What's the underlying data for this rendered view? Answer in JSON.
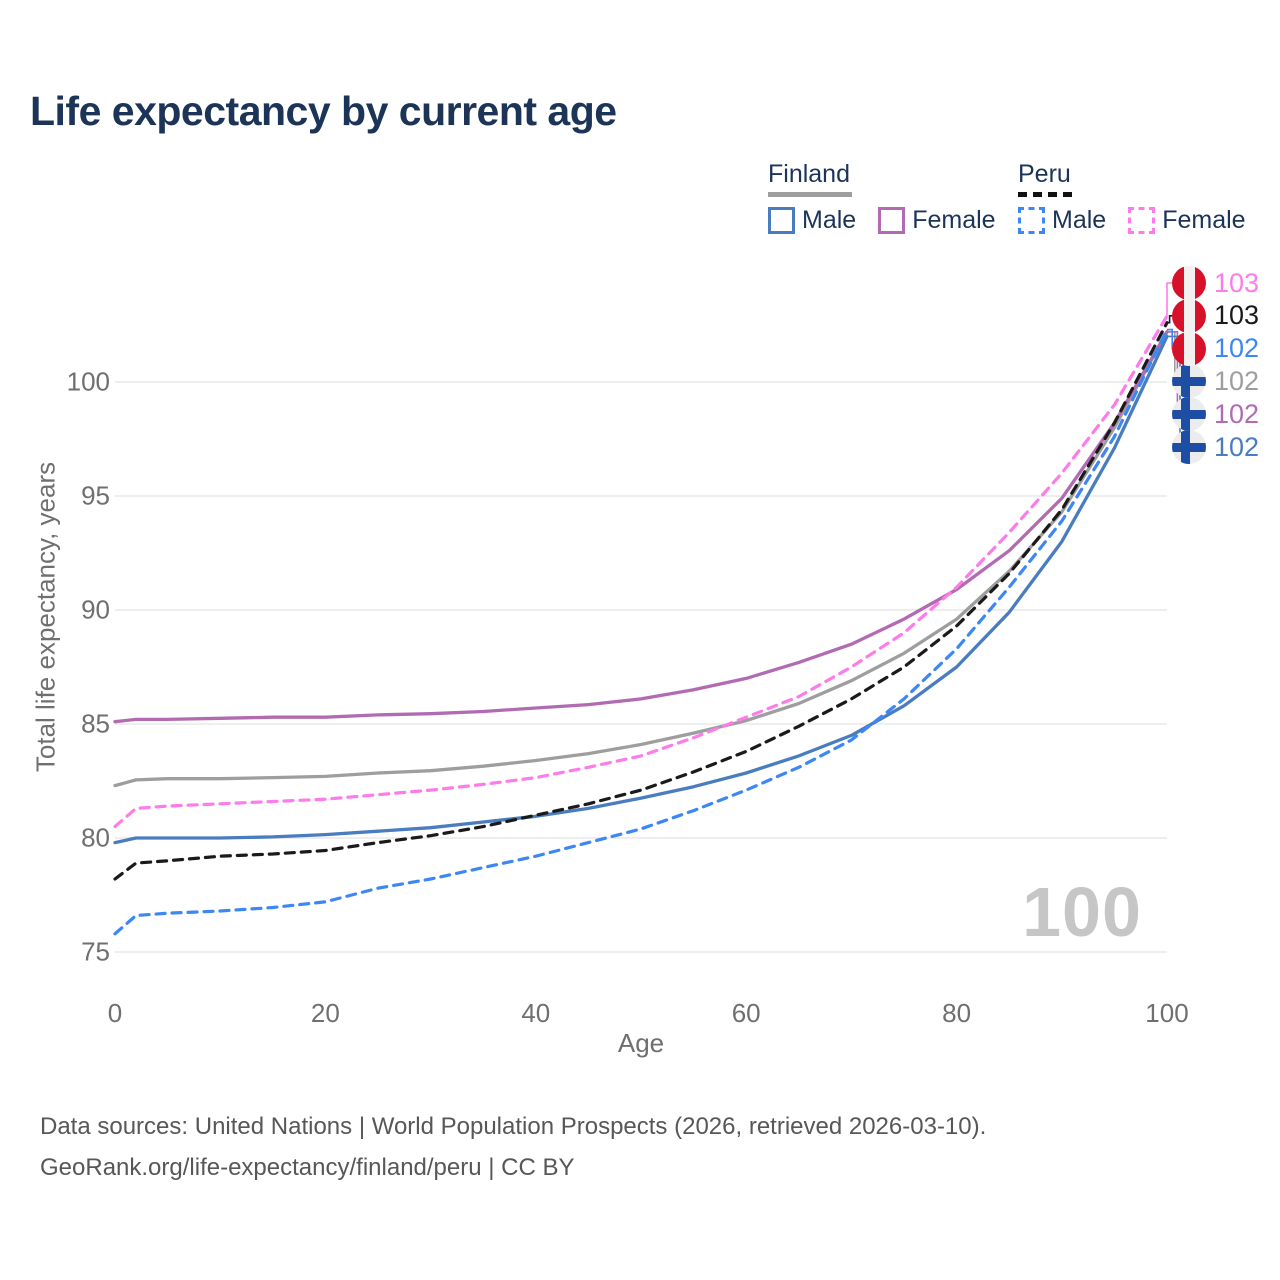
{
  "title": "Life expectancy by current age",
  "legend": {
    "groups": [
      {
        "label": "Finland",
        "line_style": "solid",
        "items": [
          {
            "label": "Male",
            "color": "#4a7cc0"
          },
          {
            "label": "Female",
            "color": "#b26bb2"
          }
        ]
      },
      {
        "label": "Peru",
        "line_style": "dashed",
        "items": [
          {
            "label": "Male",
            "color": "#3d87f5"
          },
          {
            "label": "Female",
            "color": "#fd7ce9"
          }
        ]
      }
    ]
  },
  "chart_data": {
    "type": "line",
    "title": "Life expectancy by current age",
    "xlabel": "Age",
    "ylabel": "Total life expectancy, years",
    "xlim": [
      0,
      100
    ],
    "ylim": [
      75,
      105
    ],
    "x_ticks": [
      0,
      20,
      40,
      60,
      80,
      100
    ],
    "y_ticks": [
      75,
      80,
      85,
      90,
      95,
      100
    ],
    "grid": "horizontal",
    "age_indicator": "100",
    "x": [
      0,
      2,
      5,
      10,
      15,
      20,
      25,
      30,
      35,
      40,
      45,
      50,
      55,
      60,
      65,
      70,
      75,
      80,
      85,
      90,
      95,
      100
    ],
    "series": [
      {
        "name": "Finland",
        "country": "Finland",
        "sex": "Both",
        "color": "#9e9e9e",
        "dash": "solid",
        "end_label": "102",
        "label_row": 3,
        "flag": "finland",
        "values": [
          82.3,
          82.55,
          82.6,
          82.6,
          82.65,
          82.7,
          82.85,
          82.95,
          83.15,
          83.4,
          83.7,
          84.1,
          84.6,
          85.15,
          85.9,
          86.9,
          88.1,
          89.6,
          91.7,
          94.3,
          98.0,
          102.2
        ]
      },
      {
        "name": "Finland Female",
        "country": "Finland",
        "sex": "Female",
        "color": "#b26bb2",
        "dash": "solid",
        "end_label": "102",
        "label_row": 4,
        "flag": "finland",
        "values": [
          85.1,
          85.2,
          85.2,
          85.25,
          85.3,
          85.3,
          85.4,
          85.45,
          85.55,
          85.7,
          85.85,
          86.1,
          86.5,
          87.0,
          87.7,
          88.5,
          89.6,
          90.9,
          92.6,
          94.9,
          98.2,
          102.2
        ]
      },
      {
        "name": "Finland Male",
        "country": "Finland",
        "sex": "Male",
        "color": "#4a7cc0",
        "dash": "solid",
        "end_label": "102",
        "label_row": 5,
        "flag": "finland",
        "values": [
          79.8,
          80.0,
          80.0,
          80.0,
          80.05,
          80.15,
          80.3,
          80.45,
          80.7,
          80.95,
          81.3,
          81.75,
          82.25,
          82.85,
          83.6,
          84.5,
          85.8,
          87.5,
          89.9,
          93.0,
          97.1,
          102.0
        ]
      },
      {
        "name": "Peru",
        "country": "Peru",
        "sex": "Both",
        "color": "#1a1a1a",
        "dash": "dashed",
        "end_label": "103",
        "label_row": 1,
        "flag": "peru",
        "values": [
          78.2,
          78.9,
          79.0,
          79.2,
          79.3,
          79.45,
          79.8,
          80.1,
          80.5,
          81.0,
          81.5,
          82.1,
          82.9,
          83.8,
          84.9,
          86.1,
          87.5,
          89.3,
          91.6,
          94.4,
          98.2,
          102.6
        ]
      },
      {
        "name": "Peru Female",
        "country": "Peru",
        "sex": "Female",
        "color": "#fd7ce9",
        "dash": "dashed",
        "end_label": "103",
        "label_row": 0,
        "flag": "peru",
        "values": [
          80.5,
          81.3,
          81.4,
          81.5,
          81.6,
          81.7,
          81.9,
          82.1,
          82.35,
          82.65,
          83.1,
          83.6,
          84.4,
          85.3,
          86.2,
          87.5,
          89.0,
          91.0,
          93.4,
          96.0,
          99.0,
          102.9
        ]
      },
      {
        "name": "Peru Male",
        "country": "Peru",
        "sex": "Male",
        "color": "#3d87f5",
        "dash": "dashed",
        "end_label": "102",
        "label_row": 2,
        "flag": "peru",
        "values": [
          75.8,
          76.6,
          76.7,
          76.8,
          76.95,
          77.2,
          77.8,
          78.2,
          78.7,
          79.2,
          79.8,
          80.4,
          81.2,
          82.1,
          83.1,
          84.3,
          86.1,
          88.3,
          91.0,
          93.9,
          97.6,
          102.3
        ]
      }
    ]
  },
  "footer": {
    "line1": "Data sources: United Nations | World Population Prospects (2026, retrieved 2026-03-10).",
    "line2": "GeoRank.org/life-expectancy/finland/peru | CC BY"
  }
}
